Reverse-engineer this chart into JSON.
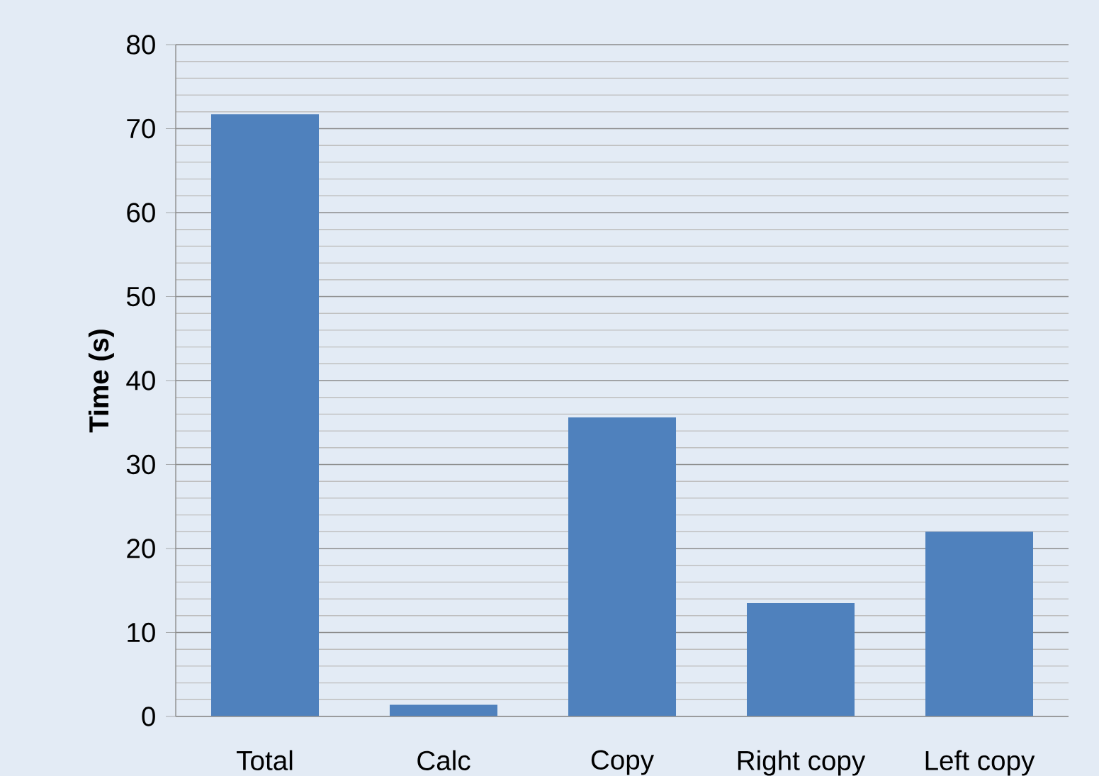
{
  "chart_data": {
    "type": "bar",
    "ylabel": "Time (s)",
    "categories": [
      "Total",
      "Calc",
      "Copy",
      "Right copy",
      "Left copy"
    ],
    "values": [
      71.7,
      1.4,
      35.6,
      13.5,
      22.0
    ],
    "color": "#4f81bd",
    "ylim": [
      0,
      80
    ],
    "yticks": [
      0,
      10,
      20,
      30,
      40,
      50,
      60,
      70,
      80
    ],
    "grid": "y"
  }
}
